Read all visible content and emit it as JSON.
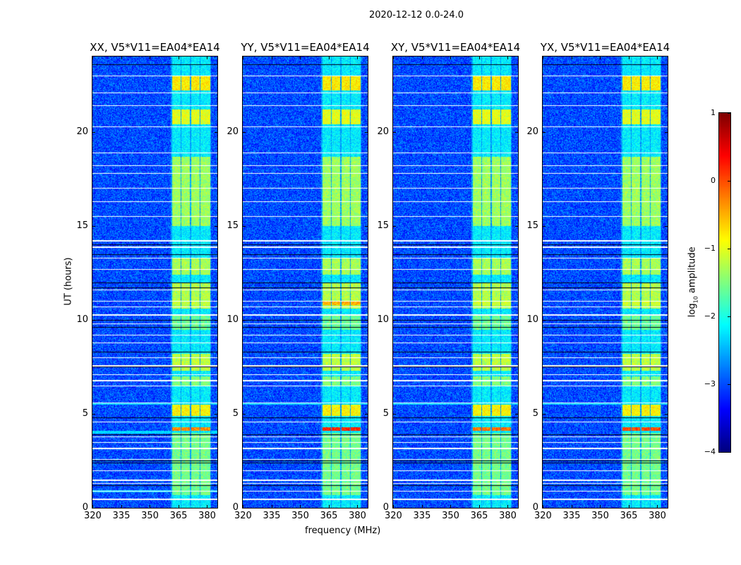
{
  "figure_title": "2020-12-12 0.0-24.0",
  "chart_data": {
    "type": "heatmap",
    "title": "2020-12-12 0.0-24.0",
    "xlabel": "frequency (MHz)",
    "ylabel": "UT (hours)",
    "xlim": [
      320,
      385.5
    ],
    "ylim": [
      0,
      24
    ],
    "xticks": [
      "320",
      "335",
      "350",
      "365",
      "380"
    ],
    "yticks": [
      "0",
      "5",
      "10",
      "15",
      "20"
    ],
    "colorbar": {
      "label_main": "log",
      "label_sub": "10",
      "label_rest": " amplitude",
      "colormap": "jet",
      "range": [
        -4,
        1
      ],
      "ticks": [
        "1",
        "0",
        "−1",
        "−2",
        "−3",
        "−4"
      ]
    },
    "background_log_amplitude": -3.0,
    "band_edges_mhz": [
      [
        361.5,
        366
      ],
      [
        366.5,
        371
      ],
      [
        371.5,
        376
      ],
      [
        376.5,
        381.5
      ]
    ],
    "active_periods_hours": [
      {
        "start": 22.2,
        "end": 23.0,
        "level": -0.8
      },
      {
        "start": 20.4,
        "end": 21.2,
        "level": -1.0
      },
      {
        "start": 15.0,
        "end": 18.7,
        "level": -1.35
      },
      {
        "start": 12.4,
        "end": 13.3,
        "level": -1.3
      },
      {
        "start": 10.6,
        "end": 12.0,
        "level": -1.25
      },
      {
        "start": 9.5,
        "end": 10.3,
        "level": -1.6
      },
      {
        "start": 7.3,
        "end": 8.2,
        "level": -1.2
      },
      {
        "start": 6.5,
        "end": 7.0,
        "level": -1.5
      },
      {
        "start": 4.9,
        "end": 5.5,
        "level": -0.85
      },
      {
        "start": 0.7,
        "end": 4.0,
        "level": -1.55
      }
    ],
    "flagged_rows_hours": [
      23.0,
      22.1,
      21.4,
      20.3,
      18.9,
      18.2,
      17.8,
      17.0,
      16.3,
      15.5,
      14.25,
      13.9,
      13.3,
      12.7,
      11.6,
      11.0,
      10.7,
      10.3,
      9.8,
      9.2,
      8.8,
      8.0,
      7.6,
      7.1,
      6.8,
      6.5,
      5.6,
      4.6,
      3.8,
      3.5,
      3.2,
      2.6,
      2.0,
      1.5,
      1.3,
      0.9,
      0.5
    ],
    "dark_rows_hours": [
      23.6,
      18.9,
      14.0,
      13.5,
      12.0,
      11.7,
      10.0,
      9.6,
      8.3,
      7.5,
      4.8,
      3.9,
      2.5,
      2.4,
      1.2
    ],
    "panels": [
      {
        "title": "XX, V5*V11=EA04*EA14",
        "rfi_4h_level": -0.3,
        "rfi_11h_level": -1.2
      },
      {
        "title": "YY, V5*V11=EA04*EA14",
        "rfi_4h_level": 0.2,
        "rfi_11h_level": -0.5
      },
      {
        "title": "XY, V5*V11=EA04*EA14",
        "rfi_4h_level": -0.2,
        "rfi_11h_level": -1.1
      },
      {
        "title": "YX, V5*V11=EA04*EA14",
        "rfi_4h_level": 0.0,
        "rfi_11h_level": -1.1
      }
    ]
  }
}
